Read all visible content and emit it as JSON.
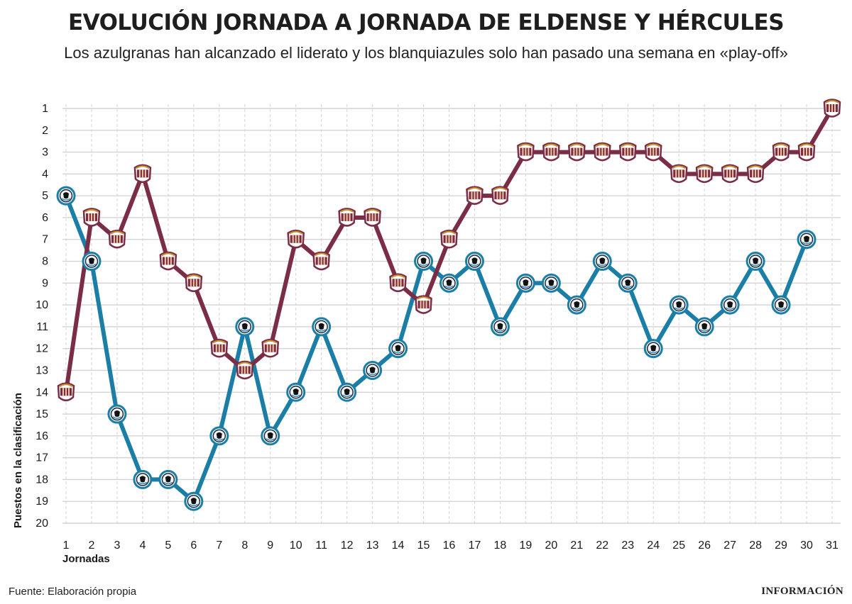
{
  "title": "EVOLUCIÓN JORNADA A JORNADA DE ELDENSE Y HÉRCULES",
  "subtitle": "Los azulgranas han alcanzado el liderato y los blanquiazules solo han pasado una semana en «play-off»",
  "source": "Fuente: Elaboración propia",
  "brand": "INFORMACIÓN",
  "colors": {
    "eldense": "#7b2d46",
    "hercules": "#1a7ea6",
    "grid": "#d4d4d4"
  },
  "chart_data": {
    "type": "line",
    "xlabel": "Jornadas",
    "ylabel": "Puestos en la clasificación",
    "x": [
      1,
      2,
      3,
      4,
      5,
      6,
      7,
      8,
      9,
      10,
      11,
      12,
      13,
      14,
      15,
      16,
      17,
      18,
      19,
      20,
      21,
      22,
      23,
      24,
      25,
      26,
      27,
      28,
      29,
      30,
      31
    ],
    "x_tick_labels": [
      "1",
      "2",
      "3",
      "4",
      "5",
      "6",
      "7",
      "8",
      "9",
      "10",
      "11",
      "12",
      "13",
      "14",
      "15",
      "16",
      "17",
      "18",
      "19",
      "20",
      "21",
      "22",
      "23",
      "24",
      "25",
      "26",
      "27",
      "28",
      "29",
      "30",
      "31"
    ],
    "y_tick_labels": [
      "1",
      "2",
      "3",
      "4",
      "5",
      "6",
      "7",
      "8",
      "9",
      "10",
      "11",
      "12",
      "13",
      "14",
      "15",
      "16",
      "17",
      "18",
      "19",
      "20"
    ],
    "ylim": [
      1,
      20
    ],
    "y_inverted": true,
    "grid": true,
    "series": [
      {
        "key": "eldense",
        "marker": "eldense-crest-icon",
        "x": [
          1,
          2,
          3,
          4,
          5,
          6,
          7,
          8,
          9,
          10,
          11,
          12,
          13,
          14,
          15,
          16,
          17,
          18,
          19,
          20,
          21,
          22,
          23,
          24,
          25,
          26,
          27,
          28,
          29,
          30,
          31
        ],
        "values": [
          14,
          6,
          7,
          4,
          8,
          9,
          12,
          13,
          12,
          7,
          8,
          6,
          6,
          9,
          10,
          7,
          5,
          5,
          3,
          3,
          3,
          3,
          3,
          3,
          4,
          4,
          4,
          4,
          3,
          3,
          1
        ]
      },
      {
        "key": "hercules",
        "marker": "hercules-crest-icon",
        "x": [
          1,
          2,
          3,
          4,
          5,
          6,
          7,
          8,
          9,
          10,
          11,
          12,
          13,
          14,
          15,
          16,
          17,
          18,
          19,
          20,
          21,
          22,
          23,
          24,
          25,
          26,
          27,
          28,
          29,
          30
        ],
        "values": [
          5,
          8,
          15,
          18,
          18,
          19,
          16,
          11,
          16,
          14,
          11,
          14,
          13,
          12,
          8,
          9,
          8,
          11,
          9,
          9,
          10,
          8,
          9,
          12,
          10,
          11,
          10,
          8,
          10,
          7
        ]
      }
    ]
  }
}
